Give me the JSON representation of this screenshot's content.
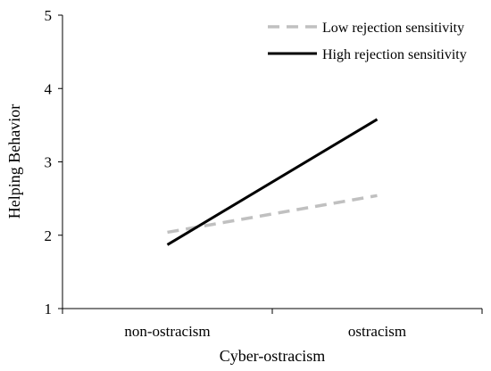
{
  "chart_data": {
    "type": "line",
    "xlabel": "Cyber-ostracism",
    "ylabel": "Helping Behavior",
    "categories": [
      "non-ostracism",
      "ostracism"
    ],
    "ylim": [
      1,
      5
    ],
    "yticks": [
      "1",
      "2",
      "3",
      "4",
      "5"
    ],
    "grid": false,
    "legend_position": "top-right",
    "series": [
      {
        "name": "Low rejection sensitivity",
        "values": [
          2.04,
          2.54
        ],
        "color": "#c0c0c0",
        "style": "dashed"
      },
      {
        "name": "High rejection sensitivity",
        "values": [
          1.87,
          3.58
        ],
        "color": "#000000",
        "style": "solid"
      }
    ]
  }
}
